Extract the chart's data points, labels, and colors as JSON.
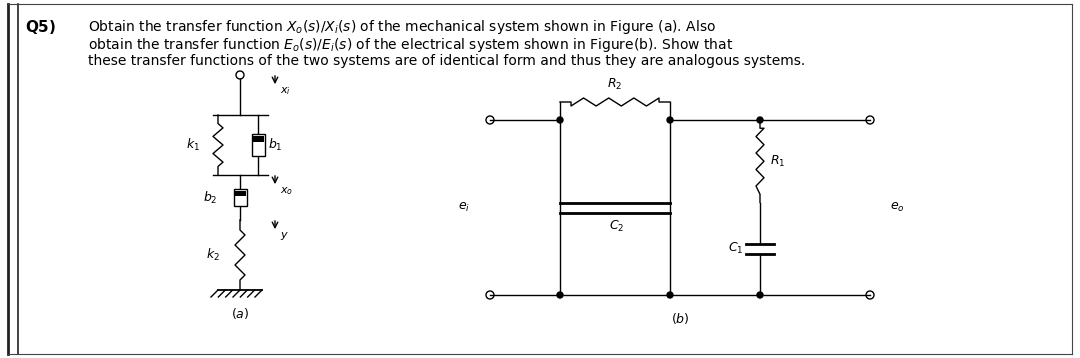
{
  "bg_color": "#ffffff",
  "text_color": "#000000",
  "label_fontsize": 8,
  "title_fontsize": 10,
  "fig_width": 10.8,
  "fig_height": 3.58,
  "dpi": 100
}
